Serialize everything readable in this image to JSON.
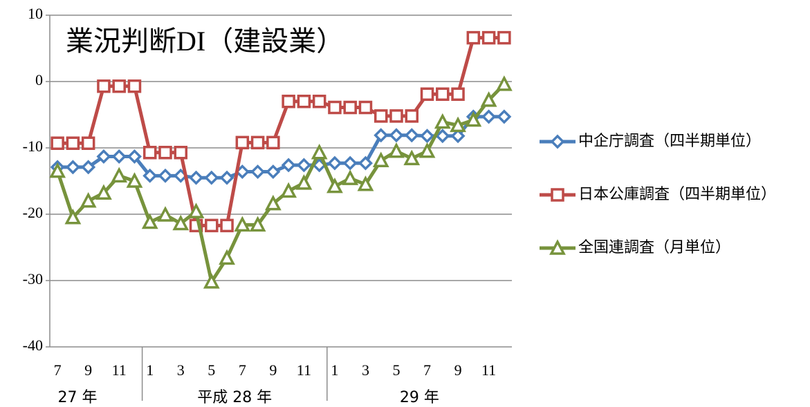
{
  "chart_data": {
    "type": "line",
    "title": "業況判断DI（建設業）",
    "categories": [
      "7",
      null,
      "9",
      null,
      "11",
      null,
      "1",
      null,
      "3",
      null,
      "5",
      null,
      "7",
      null,
      "9",
      null,
      "11",
      null,
      "1",
      null,
      "3",
      null,
      "5",
      null,
      "7",
      null,
      "9",
      null,
      "11",
      null
    ],
    "year_groups": [
      "27 年",
      "平成 28 年",
      "29 年"
    ],
    "ylim": [
      -40,
      10
    ],
    "yticks": [
      10,
      0,
      -10,
      -20,
      -30,
      -40
    ],
    "grid": true,
    "legend": "right",
    "series": [
      {
        "name": "中企庁調査（四半期単位）",
        "color": "#4a7ebb",
        "marker": "diamond",
        "values": [
          -12.9,
          -12.9,
          -12.9,
          -11.3,
          -11.3,
          -11.3,
          -14.2,
          -14.2,
          -14.2,
          -14.5,
          -14.5,
          -14.5,
          -13.6,
          -13.6,
          -13.6,
          -12.6,
          -12.6,
          -12.6,
          -12.3,
          -12.3,
          -12.3,
          -8.1,
          -8.1,
          -8.1,
          -8.2,
          -8.2,
          -8.2,
          -5.3,
          -5.3,
          -5.3
        ]
      },
      {
        "name": "日本公庫調査（四半期単位）",
        "color": "#be4b48",
        "marker": "square",
        "values": [
          -9.3,
          -9.3,
          -9.3,
          -0.7,
          -0.7,
          -0.7,
          -10.7,
          -10.7,
          -10.7,
          -21.7,
          -21.7,
          -21.7,
          -9.2,
          -9.2,
          -9.2,
          -3.0,
          -3.0,
          -3.0,
          -3.9,
          -3.9,
          -3.9,
          -5.2,
          -5.2,
          -5.2,
          -1.9,
          -1.9,
          -1.9,
          6.6,
          6.6,
          6.6
        ]
      },
      {
        "name": "全国連調査（月単位）",
        "color": "#77933c",
        "marker": "triangle",
        "values": [
          -13.5,
          -20.5,
          -18.0,
          -16.8,
          -14.2,
          -15.0,
          -21.2,
          -20.1,
          -21.4,
          -19.6,
          -30.2,
          -26.6,
          -21.6,
          -21.6,
          -18.4,
          -16.5,
          -15.3,
          -10.7,
          -15.8,
          -14.6,
          -15.5,
          -11.9,
          -10.5,
          -11.6,
          -10.5,
          -6.1,
          -6.6,
          -5.8,
          -2.8,
          -0.4
        ]
      }
    ]
  }
}
